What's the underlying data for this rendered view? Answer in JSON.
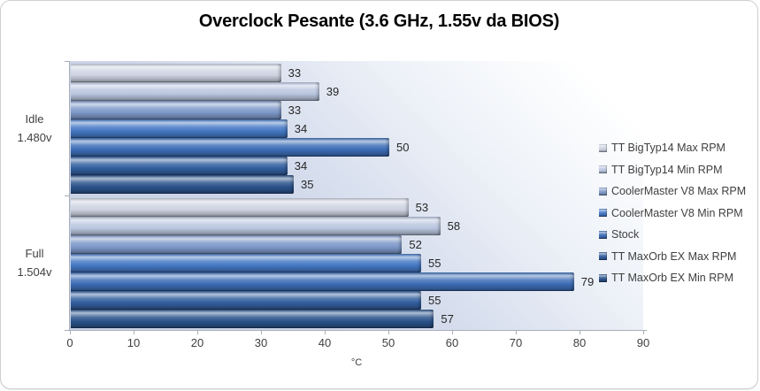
{
  "chart_data": {
    "type": "bar",
    "orientation": "horizontal",
    "title": "Overclock Pesante (3.6 GHz, 1.55v da BIOS)",
    "xlabel": "°C",
    "xlim": [
      0,
      90
    ],
    "x_ticks": [
      0,
      10,
      20,
      30,
      40,
      50,
      60,
      70,
      80,
      90
    ],
    "grid": false,
    "data_labels": true,
    "legend_position": "right",
    "categories": [
      {
        "label_lines": [
          "Idle",
          "1.480v"
        ]
      },
      {
        "label_lines": [
          "Full",
          "1.504v"
        ]
      }
    ],
    "series": [
      {
        "name": "TT BigTyp14 Max RPM",
        "color": "#cdd3e1",
        "values": [
          33,
          53
        ]
      },
      {
        "name": "TT BigTyp14 Min RPM",
        "color": "#b9c6df",
        "values": [
          39,
          58
        ]
      },
      {
        "name": "CoolerMaster V8 Max RPM",
        "color": "#7e99c9",
        "values": [
          33,
          52
        ]
      },
      {
        "name": "CoolerMaster V8 Min RPM",
        "color": "#4478c4",
        "values": [
          34,
          55
        ]
      },
      {
        "name": "Stock",
        "color": "#3c6db6",
        "values": [
          50,
          79
        ]
      },
      {
        "name": "TT MaxOrb EX Max RPM",
        "color": "#335f9f",
        "values": [
          34,
          55
        ]
      },
      {
        "name": "TT MaxOrb EX Min RPM",
        "color": "#2b538c",
        "values": [
          35,
          57
        ]
      }
    ],
    "plot_background": {
      "from": "#c7d1e6",
      "to": "#ffffff"
    },
    "axis_color": "#a9aeb8",
    "text_color": "#3f3f3f"
  }
}
